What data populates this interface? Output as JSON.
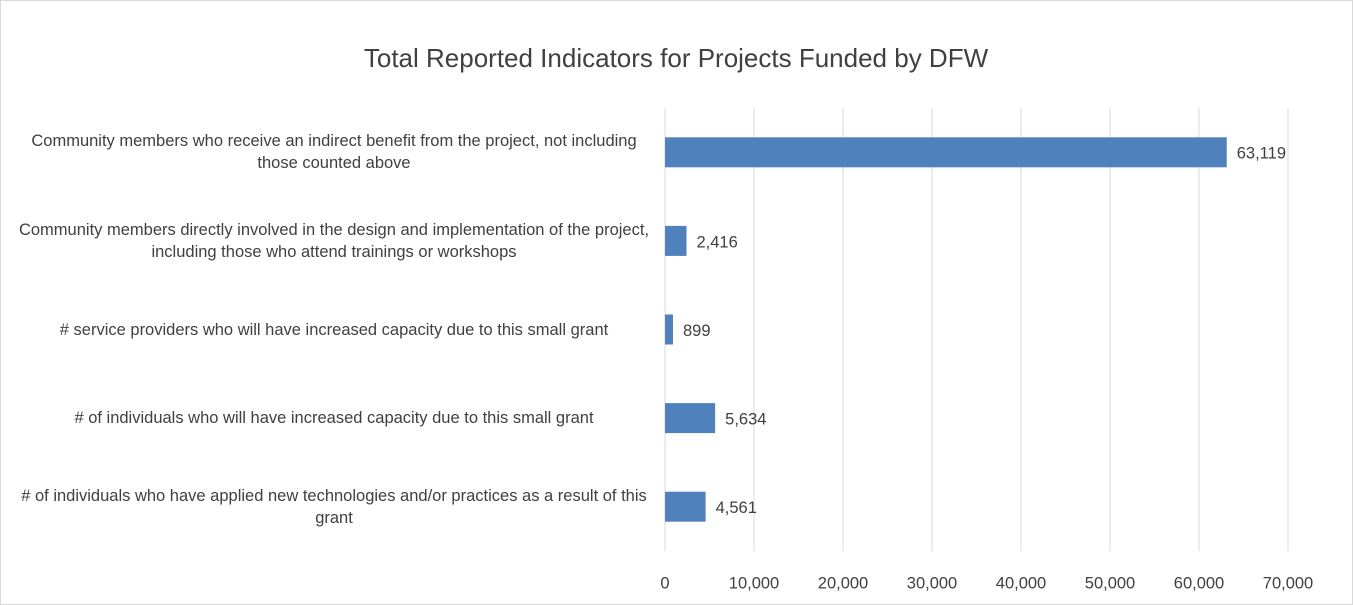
{
  "chart_data": {
    "type": "barh",
    "title": "Total Reported Indicators for Projects Funded by DFW",
    "categories": [
      "Community members who receive an indirect benefit from the project, not including those counted above",
      "Community members directly involved in the design and implementation of the project, including those who attend trainings or workshops",
      "# service providers who will have increased capacity due to this small grant",
      "# of individuals who will have increased capacity due to this small grant",
      "# of individuals who have applied new technologies and/or practices as a result of this grant"
    ],
    "values": [
      63119,
      2416,
      899,
      5634,
      4561
    ],
    "value_labels": [
      "63,119",
      "2,416",
      "899",
      "5,634",
      "4,561"
    ],
    "color": "#4f81bd",
    "xlim": [
      0,
      70000
    ],
    "xticks": [
      0,
      {
        "value": 10000,
        "label": "10,000"
      },
      {
        "value": 20000,
        "label": "20,000"
      },
      {
        "value": 30000,
        "label": "30,000"
      },
      {
        "value": 40000,
        "label": "40,000"
      },
      {
        "value": 50000,
        "label": "50,000"
      },
      {
        "value": 60000,
        "label": "60,000"
      },
      {
        "value": 70000,
        "label": "70,000"
      }
    ],
    "grid": true
  }
}
